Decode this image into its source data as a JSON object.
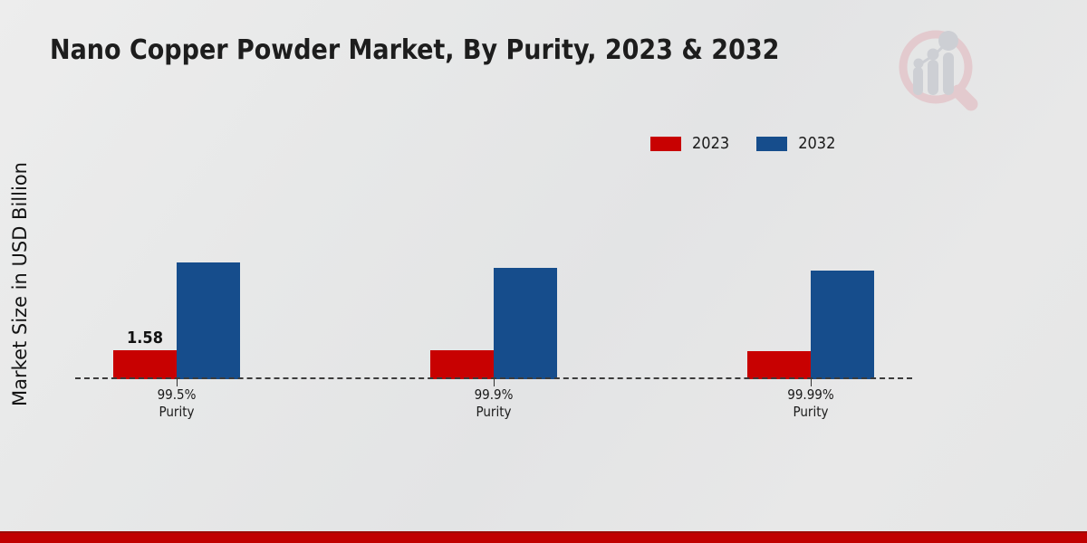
{
  "title": "Nano Copper Powder Market, By Purity, 2023 & 2032",
  "y_axis_label": "Market Size in USD Billion",
  "legend": [
    {
      "label": "2023",
      "color": "#c80101"
    },
    {
      "label": "2032",
      "color": "#164d8c"
    }
  ],
  "footer_color": "#c00101",
  "watermark_icon": "magnifier-bar-chart-logo",
  "chart_data": {
    "type": "bar",
    "categories": [
      "99.5%",
      "99.9%",
      "99.99%"
    ],
    "category_sublabel": "Purity",
    "series": [
      {
        "name": "2023",
        "color": "#c80101",
        "values": [
          1.58,
          1.55,
          1.5
        ],
        "labels": [
          "1.58",
          "",
          ""
        ]
      },
      {
        "name": "2032",
        "color": "#164d8c",
        "values": [
          6.3,
          6.05,
          5.9
        ],
        "labels": [
          "",
          "",
          ""
        ]
      }
    ],
    "title": "Nano Copper Powder Market, By Purity, 2023 & 2032",
    "xlabel": "Purity",
    "ylabel": "Market Size in USD Billion",
    "ylim": [
      0,
      7
    ],
    "grid": false,
    "axis_baseline_style": "dashed",
    "legend_position": "top-right"
  }
}
